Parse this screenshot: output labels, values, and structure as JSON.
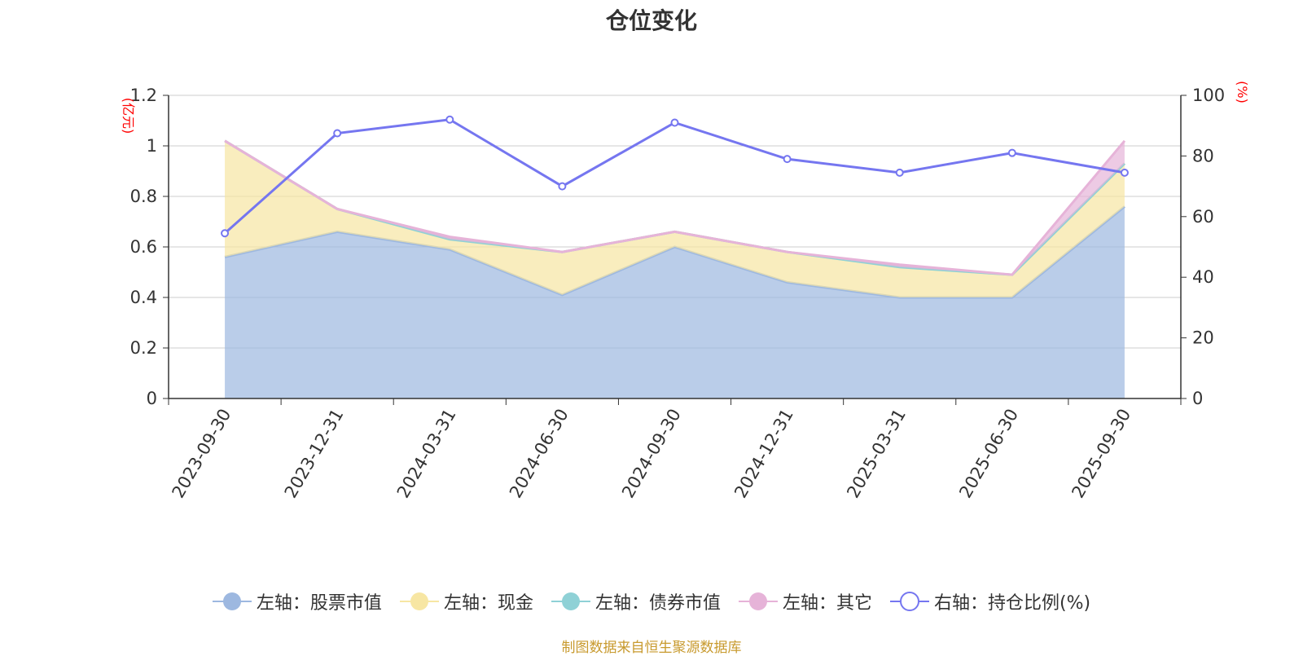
{
  "title": "仓位变化",
  "source_note": "制图数据来自恒生聚源数据库",
  "colors": {
    "stock": "#9db8e0",
    "cash": "#f7e6a3",
    "bond": "#8fd1d6",
    "other": "#e6b3d8",
    "ratio": "#7576f0",
    "grid": "#cccccc",
    "axis": "#333333",
    "unit": "#ff0000"
  },
  "legend": [
    {
      "key": "stock",
      "label": "左轴：股票市值",
      "icon": "filled-circle-icon"
    },
    {
      "key": "cash",
      "label": "左轴：现金",
      "icon": "filled-circle-icon"
    },
    {
      "key": "bond",
      "label": "左轴：债券市值",
      "icon": "filled-circle-icon"
    },
    {
      "key": "other",
      "label": "左轴：其它",
      "icon": "filled-circle-icon"
    },
    {
      "key": "ratio",
      "label": "右轴：持仓比例(%)",
      "icon": "hollow-circle-icon"
    }
  ],
  "chart_data": {
    "type": "area",
    "title": "仓位变化",
    "categories": [
      "2023-09-30",
      "2023-12-31",
      "2024-03-31",
      "2024-06-30",
      "2024-09-30",
      "2024-12-31",
      "2025-03-31",
      "2025-06-30",
      "2025-09-30"
    ],
    "left_axis": {
      "unit": "(亿元)",
      "min": 0,
      "max": 1.2,
      "ticks": [
        "0",
        "0.2",
        "0.4",
        "0.6",
        "0.8",
        "1",
        "1.2"
      ]
    },
    "right_axis": {
      "unit": "(%)",
      "min": 0,
      "max": 100,
      "ticks": [
        "0",
        "20",
        "40",
        "60",
        "80",
        "100"
      ]
    },
    "stacked_series": [
      {
        "key": "stock",
        "name": "左轴：股票市值",
        "values": [
          0.56,
          0.66,
          0.59,
          0.41,
          0.6,
          0.46,
          0.4,
          0.4,
          0.76
        ]
      },
      {
        "key": "cash",
        "name": "左轴：现金",
        "values": [
          0.46,
          0.09,
          0.04,
          0.17,
          0.06,
          0.12,
          0.12,
          0.09,
          0.17
        ]
      },
      {
        "key": "bond",
        "name": "左轴：债券市值",
        "values": [
          0,
          0,
          0,
          0,
          0,
          0,
          0,
          0,
          0
        ]
      },
      {
        "key": "other",
        "name": "左轴：其它",
        "values": [
          0,
          0,
          0.01,
          0,
          0,
          0,
          0.01,
          0,
          0.09
        ]
      }
    ],
    "line_series": {
      "key": "ratio",
      "name": "右轴：持仓比例(%)",
      "axis": "right",
      "values": [
        54.5,
        87.5,
        92,
        70,
        91,
        79,
        74.5,
        81,
        74.5
      ]
    },
    "grid": true,
    "legend_position": "bottom"
  }
}
